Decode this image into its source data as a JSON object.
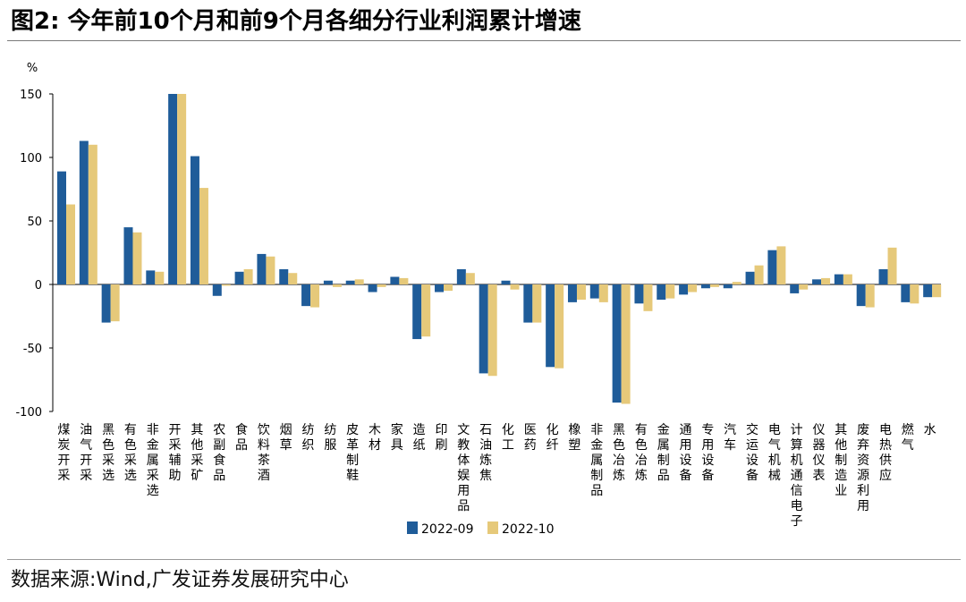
{
  "title": "图2:  今年前10个月和前9个月各细分行业利润累计增速",
  "source": "数据来源:Wind,广发证券发展研究中心",
  "chart_data": {
    "type": "bar",
    "title": "图2:  今年前10个月和前9个月各细分行业利润累计增速",
    "ylabel": "%",
    "xlabel": "",
    "ylim": [
      -100,
      150
    ],
    "yticks": [
      -100,
      -50,
      0,
      50,
      100,
      150
    ],
    "grid": false,
    "legend_position": "bottom",
    "categories": [
      "煤炭开采",
      "油气开采",
      "黑色采选",
      "有色采选",
      "非金属采选",
      "开采辅助",
      "其他采矿",
      "农副食品",
      "食品",
      "饮料茶酒",
      "烟草",
      "纺织",
      "纺服",
      "皮革制鞋",
      "木材",
      "家具",
      "造纸",
      "印刷",
      "文教体娱用品",
      "石油炼焦",
      "化工",
      "医药",
      "化纤",
      "橡塑",
      "非金属制品",
      "黑色冶炼",
      "有色冶炼",
      "金属制品",
      "通用设备",
      "专用设备",
      "汽车",
      "交运设备",
      "电气机械",
      "计算机通信电子",
      "仪器仪表",
      "其他制造业",
      "废弃资源利用",
      "电热供应",
      "燃气",
      "水"
    ],
    "series": [
      {
        "name": "2022-09",
        "color": "#1f5c99",
        "values": [
          89,
          113,
          -30,
          45,
          11,
          150,
          101,
          -9,
          10,
          24,
          12,
          -17,
          3,
          3,
          -6,
          6,
          -43,
          -6,
          12,
          -70,
          3,
          -30,
          -65,
          -14,
          -11,
          -93,
          -15,
          -12,
          -8,
          -3,
          -3,
          10,
          27,
          -7,
          4,
          8,
          -17,
          12,
          -14,
          -10
        ]
      },
      {
        "name": "2022-10",
        "color": "#e6c97a",
        "values": [
          63,
          110,
          -29,
          41,
          10,
          150,
          76,
          -1,
          12,
          22,
          9,
          -18,
          -2,
          4,
          -2,
          5,
          -41,
          -5,
          9,
          -72,
          -4,
          -30,
          -66,
          -12,
          -14,
          -94,
          -21,
          -11,
          -6,
          -2,
          2,
          15,
          30,
          -4,
          5,
          8,
          -18,
          29,
          -15,
          -10
        ]
      }
    ]
  },
  "colors": {
    "axis": "#000000",
    "rule": "#7a7a7a"
  }
}
